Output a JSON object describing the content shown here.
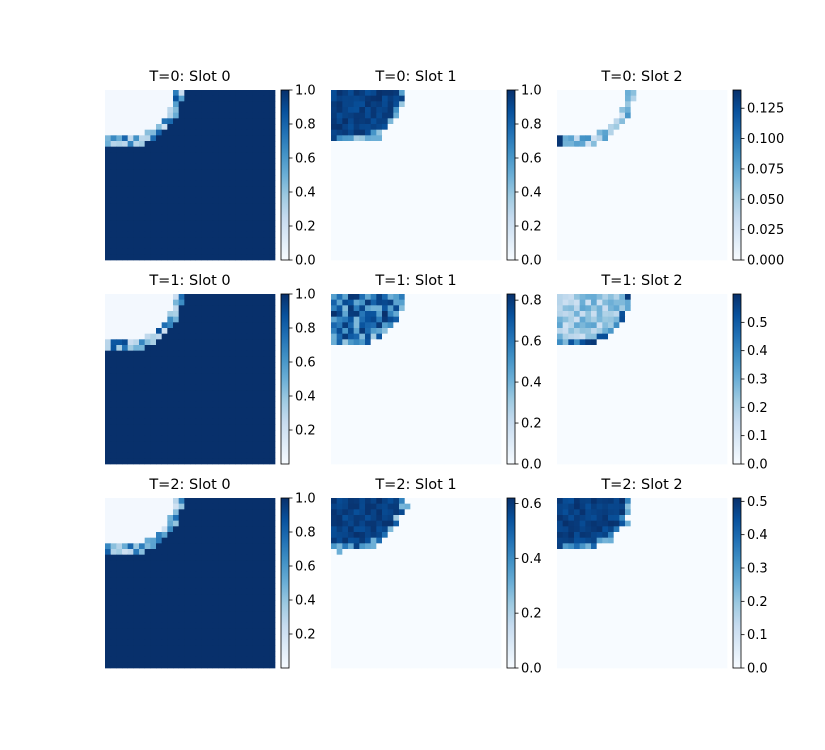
{
  "chart_data": {
    "type": "heatmap",
    "colormap": "Blues",
    "grid": false,
    "layout": "3x3 grid of heatmaps, each with its own colorbar on the right",
    "panels": [
      {
        "title": "T=0: Slot 0",
        "shape": "dark-outside-circle",
        "peak": 1.0,
        "min": 0.0,
        "max": 1.0,
        "ticks": [
          "0.0",
          "0.2",
          "0.4",
          "0.6",
          "0.8",
          "1.0"
        ],
        "tick_values": [
          0,
          0.2,
          0.4,
          0.6,
          0.8,
          1.0
        ]
      },
      {
        "title": "T=0: Slot 1",
        "shape": "solid-inside-circle",
        "peak": 1.0,
        "min": 0.0,
        "max": 1.0,
        "ticks": [
          "0.0",
          "0.2",
          "0.4",
          "0.6",
          "0.8",
          "1.0"
        ],
        "tick_values": [
          0,
          0.2,
          0.4,
          0.6,
          0.8,
          1.0
        ]
      },
      {
        "title": "T=0: Slot 2",
        "shape": "ring-edge",
        "peak": 0.14,
        "min": 0.0,
        "max": 0.14,
        "ticks": [
          "0.000",
          "0.025",
          "0.050",
          "0.075",
          "0.100",
          "0.125"
        ],
        "tick_values": [
          0,
          0.025,
          0.05,
          0.075,
          0.1,
          0.125
        ]
      },
      {
        "title": "T=1: Slot 0",
        "shape": "dark-outside-circle",
        "peak": 1.0,
        "min": 0.0,
        "max": 1.0,
        "ticks": [
          "0.2",
          "0.4",
          "0.6",
          "0.8",
          "1.0"
        ],
        "tick_values": [
          0.2,
          0.4,
          0.6,
          0.8,
          1.0
        ]
      },
      {
        "title": "T=1: Slot 1",
        "shape": "noisy-inside-circle",
        "peak": 0.83,
        "min": 0.0,
        "max": 0.83,
        "ticks": [
          "0.0",
          "0.2",
          "0.4",
          "0.6",
          "0.8"
        ],
        "tick_values": [
          0,
          0.2,
          0.4,
          0.6,
          0.8
        ]
      },
      {
        "title": "T=1: Slot 2",
        "shape": "light-inside-circle",
        "peak": 0.6,
        "min": 0.0,
        "max": 0.6,
        "ticks": [
          "0.0",
          "0.1",
          "0.2",
          "0.3",
          "0.4",
          "0.5"
        ],
        "tick_values": [
          0,
          0.1,
          0.2,
          0.3,
          0.4,
          0.5
        ]
      },
      {
        "title": "T=2: Slot 0",
        "shape": "dark-outside-circle",
        "peak": 1.0,
        "min": 0.0,
        "max": 1.0,
        "ticks": [
          "0.2",
          "0.4",
          "0.6",
          "0.8",
          "1.0"
        ],
        "tick_values": [
          0.2,
          0.4,
          0.6,
          0.8,
          1.0
        ]
      },
      {
        "title": "T=2: Slot 1",
        "shape": "solid-inside-circle",
        "peak": 0.62,
        "min": 0.0,
        "max": 0.62,
        "ticks": [
          "0.0",
          "0.2",
          "0.4",
          "0.6"
        ],
        "tick_values": [
          0,
          0.2,
          0.4,
          0.6
        ]
      },
      {
        "title": "T=2: Slot 2",
        "shape": "solid-inside-circle",
        "peak": 0.51,
        "min": 0.0,
        "max": 0.51,
        "ticks": [
          "0.0",
          "0.1",
          "0.2",
          "0.3",
          "0.4",
          "0.5"
        ],
        "tick_values": [
          0,
          0.1,
          0.2,
          0.3,
          0.4,
          0.5
        ]
      }
    ]
  }
}
